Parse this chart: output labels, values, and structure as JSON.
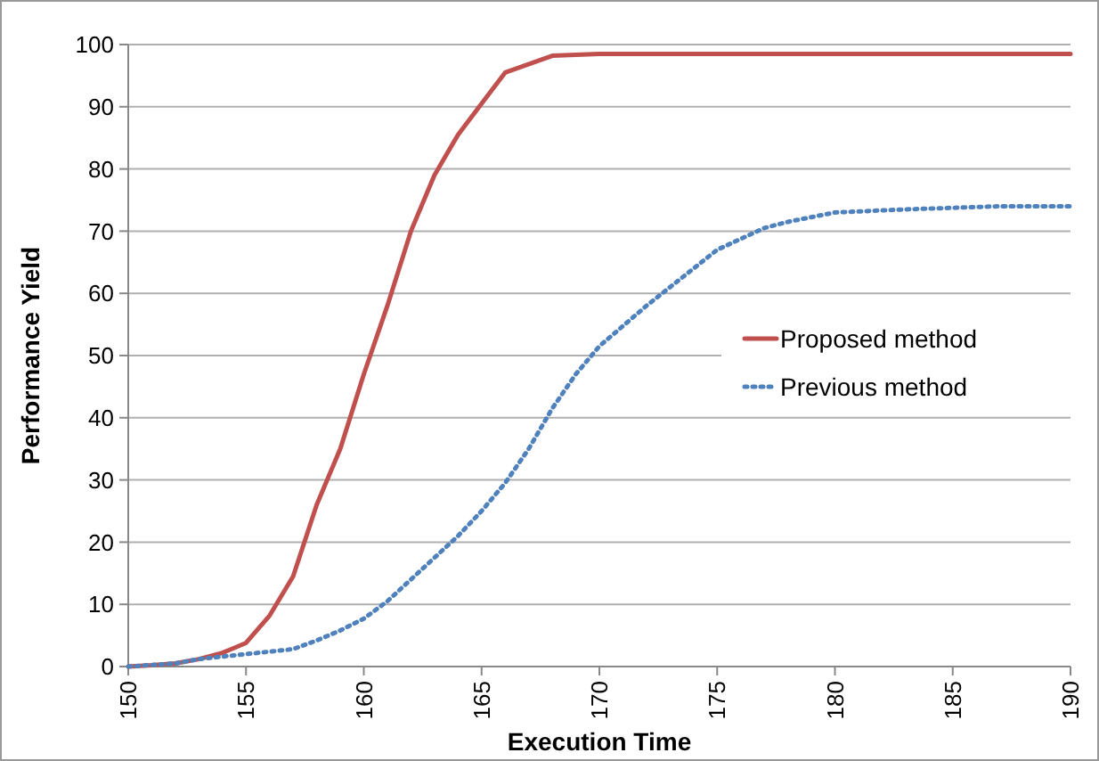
{
  "chart_data": {
    "type": "line",
    "xlabel": "Execution Time",
    "ylabel": "Performance Yield",
    "xlim": [
      150,
      190
    ],
    "xticks": [
      150,
      155,
      160,
      165,
      170,
      175,
      180,
      185,
      190
    ],
    "ylim": [
      0,
      100
    ],
    "yticks": [
      0,
      10,
      20,
      30,
      40,
      50,
      60,
      70,
      80,
      90,
      100
    ],
    "grid": "y",
    "legend": "right",
    "series": [
      {
        "name": "Proposed method",
        "color": "#c0504d",
        "line_style": "solid",
        "x": [
          150,
          151,
          152,
          153,
          154,
          155,
          156,
          157,
          158,
          159,
          160,
          161,
          162,
          163,
          164,
          165,
          166,
          168,
          170,
          190
        ],
        "values": [
          0,
          0.2,
          0.5,
          1.2,
          2.2,
          3.8,
          8.2,
          14.5,
          26,
          35,
          47,
          58,
          70,
          79,
          85.5,
          90.5,
          95.5,
          98.2,
          98.5,
          98.5
        ]
      },
      {
        "name": "Previous method",
        "color": "#4f81bd",
        "line_style": "dotted",
        "x": [
          150,
          152,
          153,
          155,
          157,
          158,
          159,
          160,
          161,
          162,
          163,
          164,
          165,
          166,
          167,
          168,
          169,
          170,
          172,
          173,
          175,
          177,
          178,
          180,
          183,
          187,
          190
        ],
        "values": [
          0,
          0.5,
          1.2,
          2,
          2.8,
          4.2,
          5.8,
          7.7,
          10.5,
          14,
          17.5,
          21,
          25,
          29.5,
          35,
          41.5,
          47,
          51.5,
          58,
          61,
          67,
          70.5,
          71.5,
          73,
          73.5,
          74,
          74
        ]
      }
    ]
  }
}
